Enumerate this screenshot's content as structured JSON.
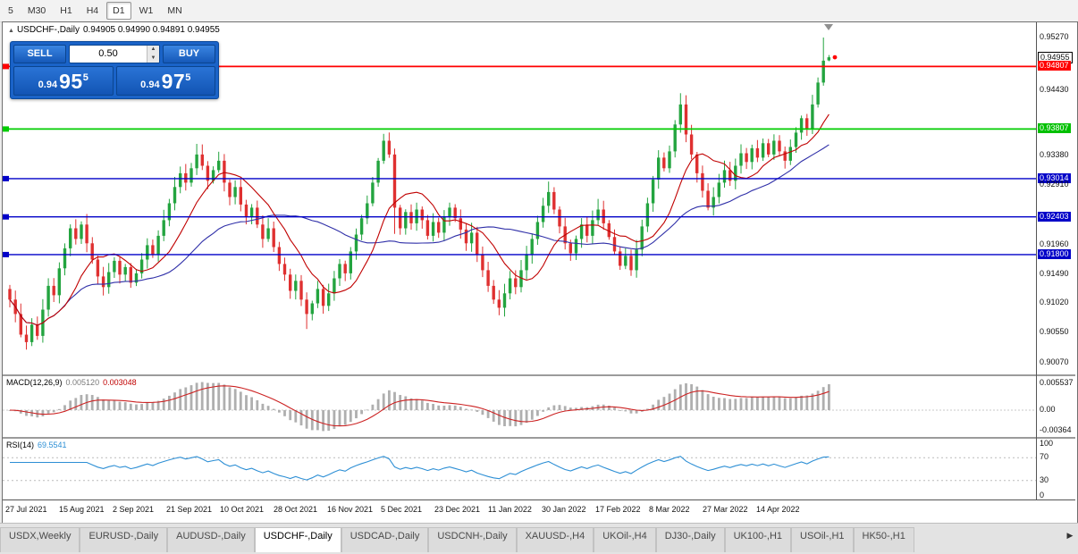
{
  "toolbar": {
    "timeframes": [
      {
        "label": "5",
        "active": false
      },
      {
        "label": "M30",
        "active": false
      },
      {
        "label": "H1",
        "active": false
      },
      {
        "label": "H4",
        "active": false
      },
      {
        "label": "D1",
        "active": true
      },
      {
        "label": "W1",
        "active": false
      },
      {
        "label": "MN",
        "active": false
      }
    ]
  },
  "chart_header": {
    "symbol_title": "USDCHF-,Daily",
    "ohlc_text": "0.94905 0.94990 0.94891 0.94955"
  },
  "trade_panel": {
    "sell_label": "SELL",
    "buy_label": "BUY",
    "volume": "0.50",
    "sell_price": {
      "prefix": "0.94",
      "big": "95",
      "sup": "5"
    },
    "buy_price": {
      "prefix": "0.94",
      "big": "97",
      "sup": "5"
    }
  },
  "icons": {
    "collapse": "▲",
    "spin_up": "▲",
    "spin_down": "▼",
    "tab_scroll_right": "▶"
  },
  "macd": {
    "label": "MACD(12,26,9)",
    "value_main": "0.005120",
    "value_signal": "0.003048",
    "axis": {
      "top": "0.005537",
      "zero": "0.00",
      "bottom": "-0.00364"
    }
  },
  "rsi": {
    "label": "RSI(14)",
    "value": "69.5541",
    "axis": [
      "100",
      "70",
      "30",
      "0"
    ],
    "levels": [
      70,
      30
    ]
  },
  "dates": [
    "27 Jul 2021",
    "15 Aug 2021",
    "2 Sep 2021",
    "21 Sep 2021",
    "10 Oct 2021",
    "28 Oct 2021",
    "16 Nov 2021",
    "5 Dec 2021",
    "23 Dec 2021",
    "11 Jan 2022",
    "30 Jan 2022",
    "17 Feb 2022",
    "8 Mar 2022",
    "27 Mar 2022",
    "14 Apr 2022"
  ],
  "tabs": {
    "items": [
      {
        "label": "USDX,Weekly",
        "active": false
      },
      {
        "label": "EURUSD-,Daily",
        "active": false
      },
      {
        "label": "AUDUSD-,Daily",
        "active": false
      },
      {
        "label": "USDCHF-,Daily",
        "active": true
      },
      {
        "label": "USDCAD-,Daily",
        "active": false
      },
      {
        "label": "USDCNH-,Daily",
        "active": false
      },
      {
        "label": "XAUUSD-,H4",
        "active": false
      },
      {
        "label": "UKOil-,H4",
        "active": false
      },
      {
        "label": "DJ30-,Daily",
        "active": false
      },
      {
        "label": "UK100-,H1",
        "active": false
      },
      {
        "label": "USOil-,H1",
        "active": false
      },
      {
        "label": "HK50-,H1",
        "active": false
      }
    ]
  },
  "chart_data": {
    "type": "candlestick",
    "symbol": "USDCHF",
    "timeframe": "Daily",
    "price_top": 0.95513,
    "price_bottom": 0.89884,
    "open_first": 0.9125,
    "closes": [
      0.9108,
      0.9085,
      0.9052,
      0.904,
      0.9068,
      0.905,
      0.9092,
      0.913,
      0.9115,
      0.9158,
      0.919,
      0.9222,
      0.9205,
      0.9228,
      0.9198,
      0.9172,
      0.9145,
      0.9128,
      0.9152,
      0.917,
      0.9148,
      0.916,
      0.9135,
      0.915,
      0.9172,
      0.9195,
      0.918,
      0.921,
      0.9235,
      0.9262,
      0.9288,
      0.931,
      0.9295,
      0.9318,
      0.934,
      0.9322,
      0.9298,
      0.9315,
      0.933,
      0.9295,
      0.9272,
      0.9288,
      0.926,
      0.924,
      0.9255,
      0.9228,
      0.9205,
      0.9222,
      0.9192,
      0.9165,
      0.9148,
      0.9122,
      0.9138,
      0.9108,
      0.9085,
      0.9102,
      0.9125,
      0.9098,
      0.9118,
      0.9142,
      0.9165,
      0.915,
      0.9185,
      0.9212,
      0.9238,
      0.9262,
      0.9295,
      0.933,
      0.9362,
      0.934,
      0.9255,
      0.9222,
      0.9248,
      0.923,
      0.9252,
      0.9235,
      0.921,
      0.9232,
      0.9215,
      0.924,
      0.9255,
      0.9238,
      0.922,
      0.9198,
      0.9215,
      0.918,
      0.9155,
      0.913,
      0.9108,
      0.9095,
      0.9118,
      0.9142,
      0.9128,
      0.9155,
      0.918,
      0.9205,
      0.9232,
      0.9258,
      0.928,
      0.9252,
      0.9225,
      0.9198,
      0.9182,
      0.9205,
      0.9228,
      0.921,
      0.9235,
      0.9252,
      0.923,
      0.9208,
      0.9185,
      0.9162,
      0.9178,
      0.9155,
      0.9188,
      0.9225,
      0.9262,
      0.93,
      0.9335,
      0.9318,
      0.9345,
      0.9388,
      0.942,
      0.9372,
      0.934,
      0.931,
      0.9282,
      0.9255,
      0.9272,
      0.9295,
      0.9315,
      0.9298,
      0.9322,
      0.9342,
      0.9328,
      0.935,
      0.9335,
      0.9358,
      0.934,
      0.9362,
      0.9345,
      0.933,
      0.9352,
      0.9375,
      0.9398,
      0.9382,
      0.942,
      0.9455,
      0.949,
      0.94955
    ],
    "open_overrides": {
      "149": 0.94905
    },
    "wick_overrides": {
      "3": [
        null,
        0.9028
      ],
      "34": [
        0.9357,
        null
      ],
      "54": [
        null,
        0.9061
      ],
      "68": [
        0.9373,
        null
      ],
      "70": [
        null,
        0.9213
      ],
      "89": [
        null,
        0.9083
      ],
      "113": [
        null,
        0.9146
      ],
      "122": [
        0.9438,
        null
      ],
      "148": [
        0.9527,
        0.945
      ],
      "149": [
        0.9499,
        0.94891
      ]
    },
    "axis_labels": [
      {
        "text": "0.95270",
        "price": 0.9527,
        "style": "plain"
      },
      {
        "text": "0.94955",
        "price": 0.94955,
        "style": "current"
      },
      {
        "text": "0.94807",
        "price": 0.94807,
        "style": "red"
      },
      {
        "text": "0.94430",
        "price": 0.9443,
        "style": "plain"
      },
      {
        "text": "0.93807",
        "price": 0.93807,
        "style": "green"
      },
      {
        "text": "0.93380",
        "price": 0.9338,
        "style": "plain"
      },
      {
        "text": "0.93014",
        "price": 0.93014,
        "style": "blue"
      },
      {
        "text": "0.92910",
        "price": 0.9291,
        "style": "plain"
      },
      {
        "text": "0.92403",
        "price": 0.92403,
        "style": "blue"
      },
      {
        "text": "0.91960",
        "price": 0.9196,
        "style": "plain"
      },
      {
        "text": "0.91800",
        "price": 0.918,
        "style": "blue"
      },
      {
        "text": "0.91490",
        "price": 0.9149,
        "style": "plain"
      },
      {
        "text": "0.91020",
        "price": 0.9102,
        "style": "plain"
      },
      {
        "text": "0.90550",
        "price": 0.9055,
        "style": "plain"
      },
      {
        "text": "0.90070",
        "price": 0.9007,
        "style": "plain"
      }
    ],
    "levels": [
      {
        "price": 0.94807,
        "color": "#FF0000",
        "width": 1.8
      },
      {
        "price": 0.93807,
        "color": "#00CC00",
        "width": 1.8
      },
      {
        "price": 0.93014,
        "color": "#0000C8",
        "width": 1.4
      },
      {
        "price": 0.92403,
        "color": "#0000C8",
        "width": 1.4
      },
      {
        "price": 0.918,
        "color": "#0000C8",
        "width": 1.4
      }
    ],
    "colors": {
      "up": "#23A43F",
      "down": "#DF3030",
      "ma_fast": "#C00000",
      "ma_slow": "#2F2FA8",
      "rsi": "#2D8FD5",
      "macd_hist": "#AFAFAF",
      "macd_signal": "#CC2222",
      "marker": "#FF0000"
    }
  }
}
